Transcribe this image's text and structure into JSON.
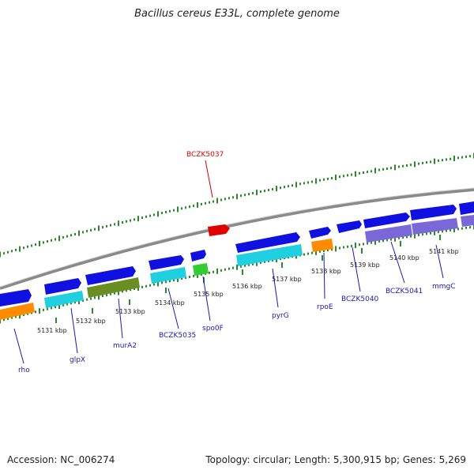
{
  "title": "Bacillus cereus E33L, complete genome",
  "accession_text": "Accession: NC_006274",
  "summary_text": "Topology: circular; Length: 5,300,915 bp; Genes: 5,269",
  "colors": {
    "backbone": "#8a8a8a",
    "tick": "#2a8a2a",
    "gene_forward": "#1010e0",
    "highlight": "#e00000",
    "orange": "#ff8c00",
    "cyan": "#20d0e0",
    "olive": "#6b8e23",
    "green": "#33cc33",
    "purple": "#7b68d8"
  },
  "position_labels": [
    "5131 kbp",
    "5132 kbp",
    "5133 kbp",
    "5134 kbp",
    "5135 kbp",
    "5136 kbp",
    "5137 kbp",
    "5138 kbp",
    "5139 kbp",
    "5140 kbp",
    "5141 kbp"
  ],
  "gene_labels": [
    "rho",
    "glpX",
    "murA2",
    "BCZK5035",
    "spo0F",
    "pyrG",
    "rpoE",
    "BCZK5040",
    "BCZK5041",
    "mmgC"
  ],
  "highlight_label": "BCZK5037"
}
